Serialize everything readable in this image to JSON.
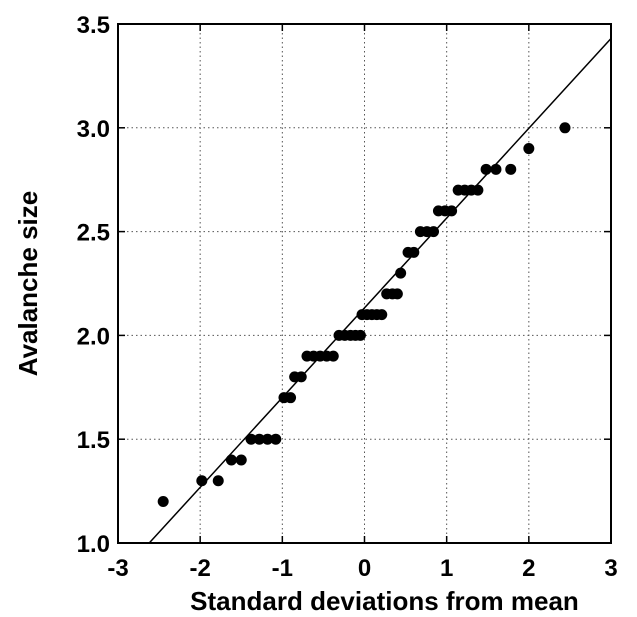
{
  "chart_data": {
    "type": "scatter",
    "title": "",
    "xlabel": "Standard deviations from mean",
    "ylabel": "Avalanche size",
    "xlim": [
      -3,
      3
    ],
    "ylim": [
      1.0,
      3.5
    ],
    "xticks": [
      -3,
      -2,
      -1,
      0,
      1,
      2,
      3
    ],
    "xtick_labels": [
      "-3",
      "-2",
      "-1",
      "0",
      "1",
      "2",
      "3"
    ],
    "yticks": [
      1.0,
      1.5,
      2.0,
      2.5,
      3.0,
      3.5
    ],
    "ytick_labels": [
      "1.0",
      "1.5",
      "2.0",
      "2.5",
      "3.0",
      "3.5"
    ],
    "grid": true,
    "fit_line": {
      "x": [
        -2.62,
        3.0
      ],
      "y": [
        1.0,
        3.43
      ]
    },
    "points": [
      {
        "x": -2.45,
        "y": 1.2
      },
      {
        "x": -1.98,
        "y": 1.3
      },
      {
        "x": -1.78,
        "y": 1.3
      },
      {
        "x": -1.62,
        "y": 1.4
      },
      {
        "x": -1.5,
        "y": 1.4
      },
      {
        "x": -1.38,
        "y": 1.5
      },
      {
        "x": -1.28,
        "y": 1.5
      },
      {
        "x": -1.18,
        "y": 1.5
      },
      {
        "x": -1.08,
        "y": 1.5
      },
      {
        "x": -0.98,
        "y": 1.7
      },
      {
        "x": -0.9,
        "y": 1.7
      },
      {
        "x": -0.85,
        "y": 1.8
      },
      {
        "x": -0.77,
        "y": 1.8
      },
      {
        "x": -0.7,
        "y": 1.9
      },
      {
        "x": -0.62,
        "y": 1.9
      },
      {
        "x": -0.54,
        "y": 1.9
      },
      {
        "x": -0.46,
        "y": 1.9
      },
      {
        "x": -0.38,
        "y": 1.9
      },
      {
        "x": -0.31,
        "y": 2.0
      },
      {
        "x": -0.24,
        "y": 2.0
      },
      {
        "x": -0.17,
        "y": 2.0
      },
      {
        "x": -0.11,
        "y": 2.0
      },
      {
        "x": -0.05,
        "y": 2.0
      },
      {
        "x": -0.03,
        "y": 2.1
      },
      {
        "x": 0.03,
        "y": 2.1
      },
      {
        "x": 0.09,
        "y": 2.1
      },
      {
        "x": 0.15,
        "y": 2.1
      },
      {
        "x": 0.21,
        "y": 2.1
      },
      {
        "x": 0.27,
        "y": 2.2
      },
      {
        "x": 0.34,
        "y": 2.2
      },
      {
        "x": 0.4,
        "y": 2.2
      },
      {
        "x": 0.44,
        "y": 2.3
      },
      {
        "x": 0.53,
        "y": 2.4
      },
      {
        "x": 0.6,
        "y": 2.4
      },
      {
        "x": 0.68,
        "y": 2.5
      },
      {
        "x": 0.76,
        "y": 2.5
      },
      {
        "x": 0.84,
        "y": 2.5
      },
      {
        "x": 0.9,
        "y": 2.6
      },
      {
        "x": 0.98,
        "y": 2.6
      },
      {
        "x": 1.06,
        "y": 2.6
      },
      {
        "x": 1.14,
        "y": 2.7
      },
      {
        "x": 1.22,
        "y": 2.7
      },
      {
        "x": 1.3,
        "y": 2.7
      },
      {
        "x": 1.38,
        "y": 2.7
      },
      {
        "x": 1.48,
        "y": 2.8
      },
      {
        "x": 1.6,
        "y": 2.8
      },
      {
        "x": 1.78,
        "y": 2.8
      },
      {
        "x": 2.0,
        "y": 2.9
      },
      {
        "x": 2.44,
        "y": 3.0
      }
    ]
  }
}
